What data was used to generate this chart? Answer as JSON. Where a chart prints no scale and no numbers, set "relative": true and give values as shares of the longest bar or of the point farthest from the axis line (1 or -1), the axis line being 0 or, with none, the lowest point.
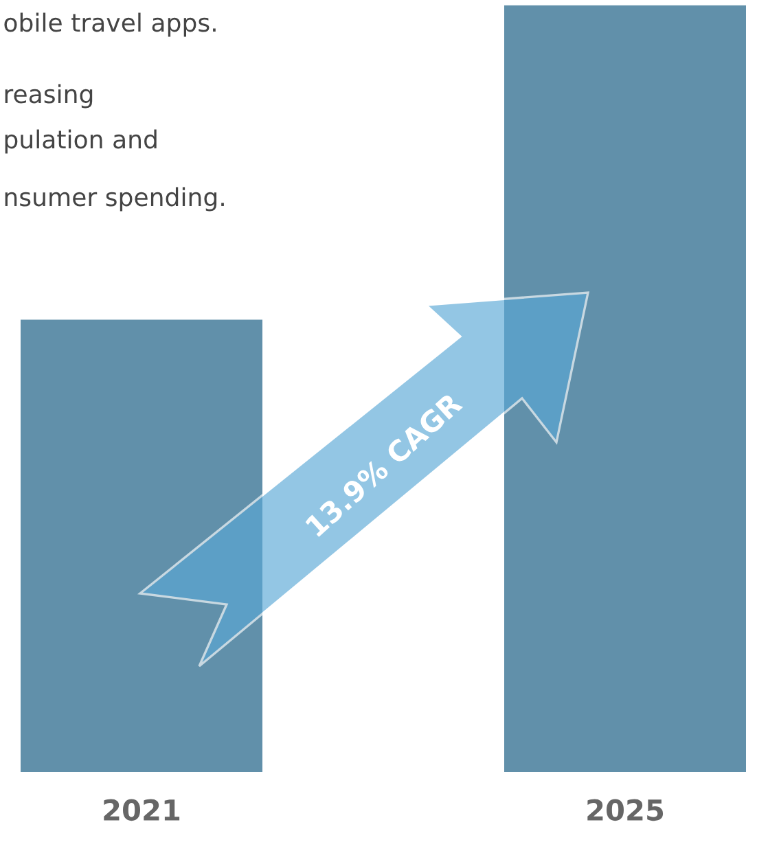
{
  "chart_data": {
    "type": "bar",
    "categories": [
      "2021",
      "2025"
    ],
    "values": [
      0.59,
      1
    ],
    "color": "#6190aa",
    "relative": true,
    "annotations": [
      "obile travel apps.",
      "reasing",
      "pulation and",
      "nsumer spending.",
      "13.9% CAGR"
    ]
  }
}
